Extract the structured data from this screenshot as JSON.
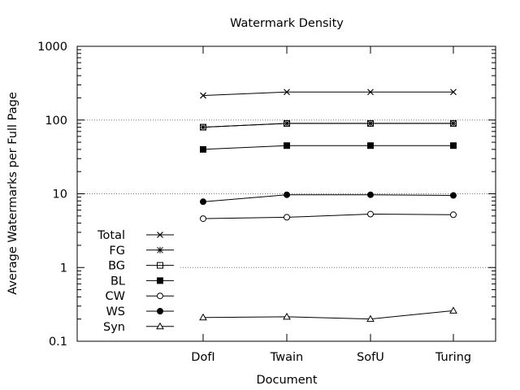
{
  "chart_data": {
    "type": "line",
    "title": "Watermark Density",
    "xlabel": "Document",
    "ylabel": "Average Watermarks per Full Page",
    "y_scale": "log",
    "ylim": [
      0.1,
      1000
    ],
    "y_ticks": [
      "0.1",
      "1",
      "10",
      "100",
      "1000"
    ],
    "categories": [
      "DofI",
      "Twain",
      "SofU",
      "Turing"
    ],
    "grid": "horizontal dotted at major y ticks",
    "legend_position": "bottom-left",
    "series": [
      {
        "name": "Total",
        "marker": "x",
        "values": [
          215,
          240,
          240,
          240
        ]
      },
      {
        "name": "FG",
        "marker": "star",
        "values": [
          80,
          90,
          90,
          90
        ]
      },
      {
        "name": "BG",
        "marker": "open-square",
        "values": [
          80,
          90,
          90,
          90
        ]
      },
      {
        "name": "BL",
        "marker": "filled-square",
        "values": [
          40,
          45,
          45,
          45
        ]
      },
      {
        "name": "CW",
        "marker": "open-circle",
        "values": [
          4.6,
          4.8,
          5.3,
          5.2
        ]
      },
      {
        "name": "WS",
        "marker": "filled-circle",
        "values": [
          7.8,
          9.7,
          9.7,
          9.5
        ]
      },
      {
        "name": "Syn",
        "marker": "open-triangle",
        "values": [
          0.21,
          0.215,
          0.2,
          0.26
        ]
      }
    ]
  }
}
